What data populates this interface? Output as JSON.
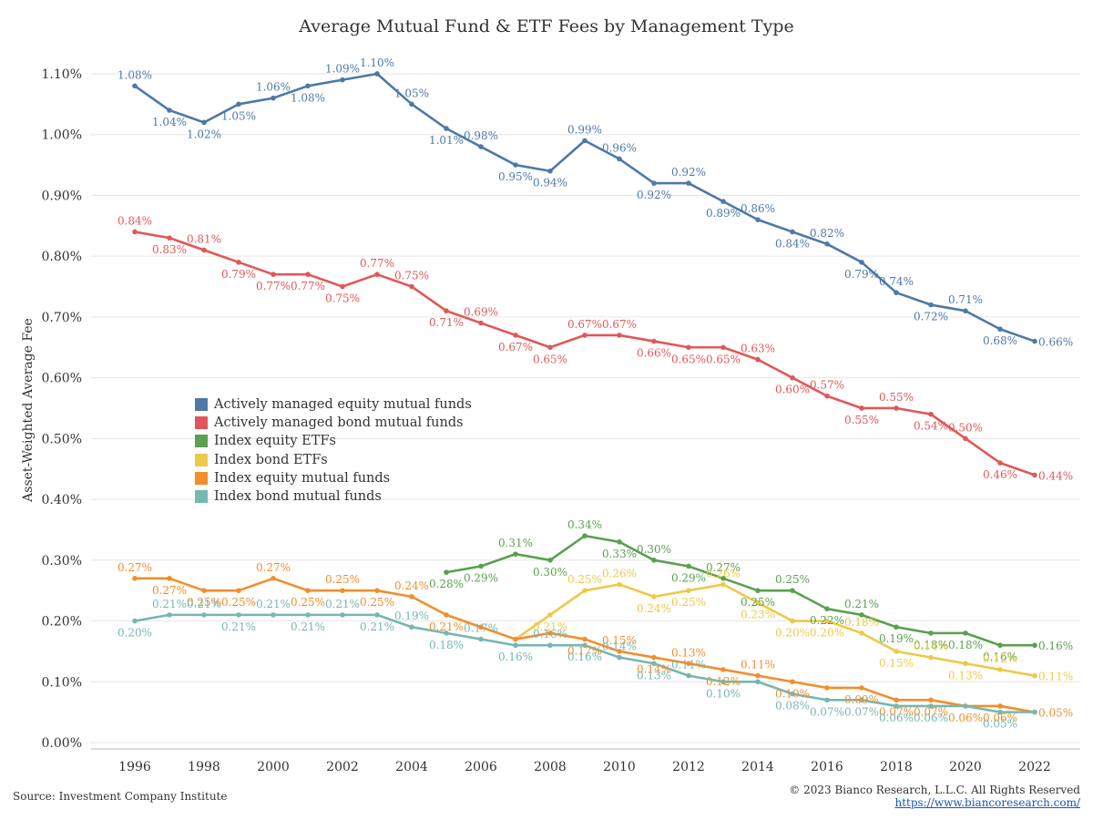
{
  "title": "Average Mutual Fund & ETF Fees by Management Type",
  "source": "Source: Investment Company Institute",
  "copyright": "© 2023 Bianco Research, L.L.C. All Rights Reserved",
  "url": "https://www.biancoresearch.com/",
  "chart_data": {
    "type": "line",
    "ylabel": "Asset-Weighted Average Fee",
    "xlabel": "",
    "x_ticks": [
      1996,
      1998,
      2000,
      2002,
      2004,
      2006,
      2008,
      2010,
      2012,
      2014,
      2016,
      2018,
      2020,
      2022
    ],
    "xlim": [
      1995,
      2023
    ],
    "ylim": [
      0,
      1.12
    ],
    "y_ticks": [
      0,
      0.1,
      0.2,
      0.3,
      0.4,
      0.5,
      0.6,
      0.7,
      0.8,
      0.9,
      1.0,
      1.1
    ],
    "y_tick_labels": [
      "0.00%",
      "0.10%",
      "0.20%",
      "0.30%",
      "0.40%",
      "0.50%",
      "0.60%",
      "0.70%",
      "0.80%",
      "0.90%",
      "1.00%",
      "1.10%"
    ],
    "grid": "horizontal",
    "legend_placement": "center-left",
    "series": [
      {
        "name": "Actively managed equity mutual funds",
        "color": "#4e79a7",
        "x": [
          1996,
          1997,
          1998,
          1999,
          2000,
          2001,
          2002,
          2003,
          2004,
          2005,
          2006,
          2007,
          2008,
          2009,
          2010,
          2011,
          2012,
          2013,
          2014,
          2015,
          2016,
          2017,
          2018,
          2019,
          2020,
          2021,
          2022
        ],
        "values": [
          1.08,
          1.04,
          1.02,
          1.05,
          1.06,
          1.08,
          1.09,
          1.1,
          1.05,
          1.01,
          0.98,
          0.95,
          0.94,
          0.99,
          0.96,
          0.92,
          0.92,
          0.89,
          0.86,
          0.84,
          0.82,
          0.79,
          0.74,
          0.72,
          0.71,
          0.68,
          0.66
        ],
        "labels": [
          "1.08%",
          "1.04%",
          "1.02%",
          "1.05%",
          "1.06%",
          "1.08%",
          "1.09%",
          "1.10%",
          "1.05%",
          "1.01%",
          "0.98%",
          "0.95%",
          "0.94%",
          "0.99%",
          "0.96%",
          "0.92%",
          "0.92%",
          "0.89%",
          "0.86%",
          "0.84%",
          "0.82%",
          "0.79%",
          "0.74%",
          "0.72%",
          "0.71%",
          "0.68%",
          "0.66%"
        ]
      },
      {
        "name": "Actively managed bond mutual funds",
        "color": "#e15759",
        "x": [
          1996,
          1997,
          1998,
          1999,
          2000,
          2001,
          2002,
          2003,
          2004,
          2005,
          2006,
          2007,
          2008,
          2009,
          2010,
          2011,
          2012,
          2013,
          2014,
          2015,
          2016,
          2017,
          2018,
          2019,
          2020,
          2021,
          2022
        ],
        "values": [
          0.84,
          0.83,
          0.81,
          0.79,
          0.77,
          0.77,
          0.75,
          0.77,
          0.75,
          0.71,
          0.69,
          0.67,
          0.65,
          0.67,
          0.67,
          0.66,
          0.65,
          0.65,
          0.63,
          0.6,
          0.57,
          0.55,
          0.55,
          0.54,
          0.5,
          0.46,
          0.44
        ],
        "labels": [
          "0.84%",
          "0.83%",
          "0.81%",
          "0.79%",
          "0.77%",
          "0.77%",
          "0.75%",
          "0.77%",
          "0.75%",
          "0.71%",
          "0.69%",
          "0.67%",
          "0.65%",
          "0.67%",
          "0.67%",
          "0.66%",
          "0.65%",
          "0.65%",
          "0.63%",
          "0.60%",
          "0.57%",
          "0.55%",
          "0.55%",
          "0.54%",
          "0.50%",
          "0.46%",
          "0.44%"
        ]
      },
      {
        "name": "Index equity ETFs",
        "color": "#59a14f",
        "x": [
          2005,
          2006,
          2007,
          2008,
          2009,
          2010,
          2011,
          2012,
          2013,
          2014,
          2015,
          2016,
          2017,
          2018,
          2019,
          2020,
          2021,
          2022
        ],
        "values": [
          0.28,
          0.29,
          0.31,
          0.3,
          0.34,
          0.33,
          0.3,
          0.29,
          0.27,
          0.25,
          0.25,
          0.22,
          0.21,
          0.19,
          0.18,
          0.18,
          0.16,
          0.16
        ],
        "labels": [
          "0.28%",
          "0.29%",
          "0.31%",
          "0.30%",
          "0.34%",
          "0.33%",
          "0.30%",
          "0.29%",
          "0.27%",
          "0.25%",
          "0.25%",
          "0.22%",
          "0.21%",
          "0.19%",
          "0.18%",
          "0.18%",
          "0.16%",
          "0.16%"
        ]
      },
      {
        "name": "Index bond ETFs",
        "color": "#edc948",
        "x": [
          2007,
          2008,
          2009,
          2010,
          2011,
          2012,
          2013,
          2014,
          2015,
          2016,
          2017,
          2018,
          2019,
          2020,
          2021,
          2022
        ],
        "values": [
          0.17,
          0.21,
          0.25,
          0.26,
          0.24,
          0.25,
          0.26,
          0.23,
          0.2,
          0.2,
          0.18,
          0.15,
          0.14,
          0.13,
          0.12,
          0.11
        ],
        "labels": [
          "",
          "0.21%",
          "0.25%",
          "0.26%",
          "0.24%",
          "0.25%",
          "0.26%",
          "0.23%",
          "0.20%",
          "0.20%",
          "0.18%",
          "0.15%",
          "0.14%",
          "0.13%",
          "0.12%",
          "0.11%"
        ]
      },
      {
        "name": "Index equity mutual funds",
        "color": "#f28e2b",
        "x": [
          1996,
          1997,
          1998,
          1999,
          2000,
          2001,
          2002,
          2003,
          2004,
          2005,
          2006,
          2007,
          2008,
          2009,
          2010,
          2011,
          2012,
          2013,
          2014,
          2015,
          2016,
          2017,
          2018,
          2019,
          2020,
          2021,
          2022
        ],
        "values": [
          0.27,
          0.27,
          0.25,
          0.25,
          0.27,
          0.25,
          0.25,
          0.25,
          0.24,
          0.21,
          0.19,
          0.17,
          0.18,
          0.17,
          0.15,
          0.14,
          0.13,
          0.12,
          0.11,
          0.1,
          0.09,
          0.09,
          0.07,
          0.07,
          0.06,
          0.06,
          0.05
        ],
        "labels": [
          "0.27%",
          "0.27%",
          "0.25%",
          "0.25%",
          "0.27%",
          "0.25%",
          "0.25%",
          "0.25%",
          "0.24%",
          "0.21%",
          "",
          "",
          "",
          "0.17%",
          "0.15%",
          "0.14%",
          "0.13%",
          "0.12%",
          "0.11%",
          "0.10%",
          "",
          "0.09%",
          "0.07%",
          "0.07%",
          "0.06%",
          "0.06%",
          "0.05%"
        ]
      },
      {
        "name": "Index bond mutual funds",
        "color": "#76b7b2",
        "x": [
          1996,
          1997,
          1998,
          1999,
          2000,
          2001,
          2002,
          2003,
          2004,
          2005,
          2006,
          2007,
          2008,
          2009,
          2010,
          2011,
          2012,
          2013,
          2014,
          2015,
          2016,
          2017,
          2018,
          2019,
          2020,
          2021,
          2022
        ],
        "values": [
          0.2,
          0.21,
          0.21,
          0.21,
          0.21,
          0.21,
          0.21,
          0.21,
          0.19,
          0.18,
          0.17,
          0.16,
          0.16,
          0.16,
          0.14,
          0.13,
          0.11,
          0.1,
          0.1,
          0.08,
          0.07,
          0.07,
          0.06,
          0.06,
          0.06,
          0.05,
          0.05
        ],
        "labels": [
          "0.20%",
          "0.21%",
          "0.21%",
          "0.21%",
          "0.21%",
          "0.21%",
          "0.21%",
          "0.21%",
          "0.19%",
          "0.18%",
          "0.17%",
          "0.16%",
          "0.16%",
          "0.16%",
          "0.14%",
          "0.13%",
          "0.11%",
          "0.10%",
          "",
          "0.08%",
          "0.07%",
          "0.07%",
          "0.06%",
          "0.06%",
          "",
          "0.05%",
          ""
        ]
      }
    ]
  }
}
